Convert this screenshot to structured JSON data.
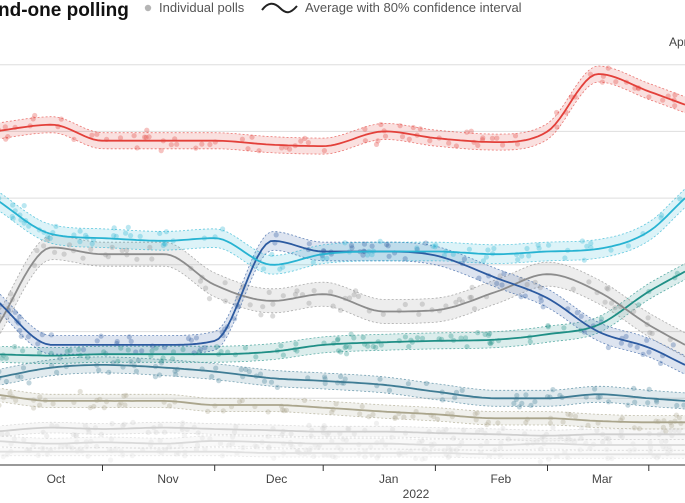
{
  "chart_data": {
    "type": "line",
    "title": "nd-one polling",
    "legend": {
      "placement": "top",
      "points_label": "Individual polls",
      "average_label": "Average with 80% confidence interval"
    },
    "corner_label": "Apr",
    "year_label": "2022",
    "x_ticks": [
      "Oct",
      "Nov",
      "Dec",
      "Jan",
      "Feb",
      "Mar"
    ],
    "x_tick_dates": [
      "2021-10-01",
      "2021-11-01",
      "2021-12-01",
      "2022-01-01",
      "2022-02-01",
      "2022-03-01"
    ],
    "x": [
      "2021-09-15",
      "2021-10-01",
      "2021-10-15",
      "2021-11-01",
      "2021-11-15",
      "2021-12-01",
      "2021-12-15",
      "2022-01-01",
      "2022-01-15",
      "2022-02-01",
      "2022-02-15",
      "2022-03-01",
      "2022-03-15",
      "2022-03-25"
    ],
    "xlim": [
      "2021-09-15",
      "2022-03-25"
    ],
    "ylim": [
      0,
      32
    ],
    "grid": true,
    "series": [
      {
        "color": "#e3403a",
        "values": [
          25.0,
          25.5,
          24.3,
          24.3,
          24.3,
          24.0,
          23.9,
          25.0,
          24.5,
          24.2,
          25.0,
          29.3,
          28.0,
          27.0
        ],
        "band": 0.6
      },
      {
        "color": "#27b3d2",
        "values": [
          20.0,
          17.3,
          17.0,
          16.8,
          17.0,
          15.0,
          15.8,
          16.0,
          16.0,
          15.8,
          16.0,
          16.2,
          17.5,
          20.0
        ],
        "band": 0.7
      },
      {
        "color": "#2c5aa0",
        "values": [
          12.5,
          9.0,
          9.0,
          9.0,
          9.3,
          16.8,
          16.0,
          16.0,
          15.7,
          14.0,
          12.5,
          10.0,
          8.8,
          7.5
        ],
        "band": 0.7
      },
      {
        "color": "#8c8c8c",
        "values": [
          10.0,
          16.3,
          15.8,
          15.8,
          13.5,
          12.3,
          12.8,
          11.5,
          11.6,
          13.0,
          14.3,
          13.0,
          10.5,
          9.0
        ],
        "band": 0.9
      },
      {
        "color": "#1f8f86",
        "values": [
          8.3,
          8.2,
          8.3,
          8.3,
          8.3,
          8.5,
          9.0,
          9.2,
          9.3,
          9.4,
          9.8,
          10.5,
          13.0,
          14.5
        ],
        "band": 0.6
      },
      {
        "color": "#3f7c94",
        "values": [
          6.5,
          7.3,
          7.5,
          7.3,
          7.0,
          6.5,
          6.3,
          6.0,
          5.5,
          5.0,
          5.0,
          5.3,
          5.0,
          4.8
        ],
        "band": 0.6
      },
      {
        "color": "#aaa58c",
        "values": [
          5.3,
          4.8,
          4.8,
          4.8,
          4.5,
          4.5,
          4.3,
          4.0,
          3.8,
          3.5,
          3.5,
          3.3,
          3.2,
          3.2
        ],
        "band": 0.5
      },
      {
        "color": "#cfcfcf",
        "values": [
          2.5,
          2.8,
          2.7,
          2.8,
          2.7,
          2.6,
          2.5,
          2.5,
          2.4,
          2.3,
          2.2,
          2.3,
          2.3,
          2.3
        ],
        "band": 0.4
      },
      {
        "color": "#d9d9d9",
        "values": [
          1.8,
          1.6,
          1.7,
          1.6,
          1.8,
          1.7,
          1.6,
          1.6,
          1.5,
          1.5,
          1.6,
          1.5,
          1.5,
          1.5
        ],
        "band": 0.4
      },
      {
        "color": "#e0e0e0",
        "values": [
          1.0,
          1.0,
          1.0,
          1.0,
          1.0,
          0.9,
          0.9,
          0.9,
          0.9,
          0.8,
          0.8,
          0.8,
          0.8,
          0.8
        ],
        "band": 0.3
      }
    ]
  }
}
